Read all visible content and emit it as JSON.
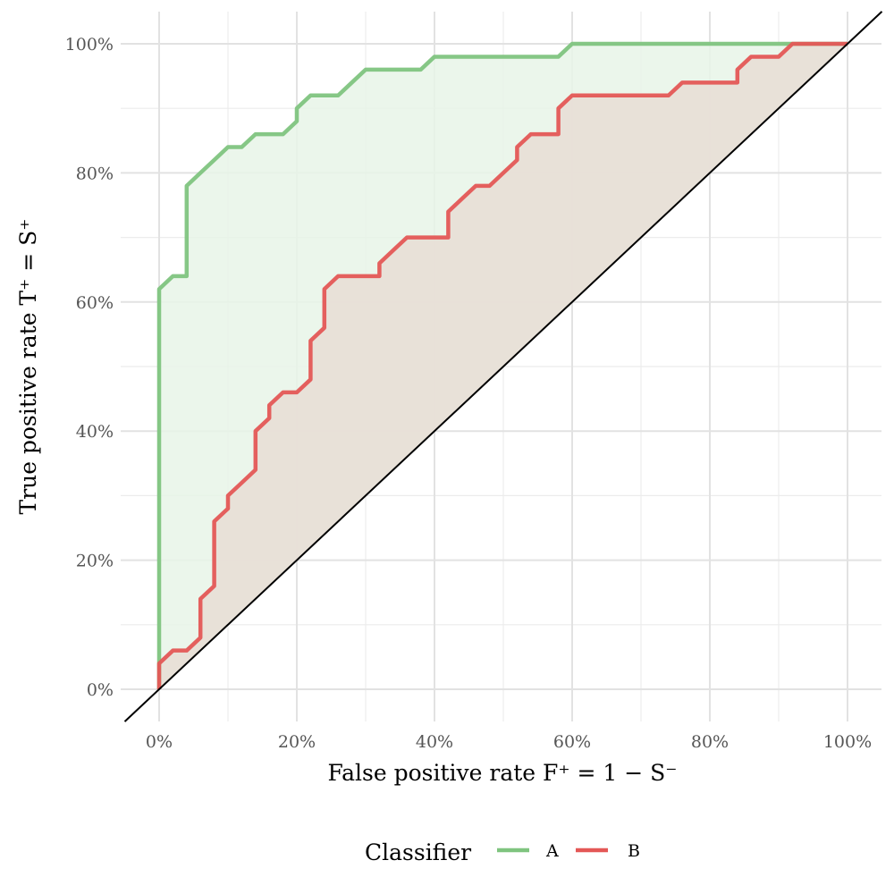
{
  "chart_data": {
    "type": "line",
    "xlabel": "False positive rate  F⁺ = 1 − S⁻",
    "ylabel": "True positive rate  T⁺ = S⁺",
    "xlim": [
      0,
      1
    ],
    "ylim": [
      0,
      1
    ],
    "x_ticks": [
      0,
      0.2,
      0.4,
      0.6,
      0.8,
      1.0
    ],
    "y_ticks": [
      0,
      0.2,
      0.4,
      0.6,
      0.8,
      1.0
    ],
    "x_tick_labels": [
      "0%",
      "20%",
      "40%",
      "60%",
      "80%",
      "100%"
    ],
    "y_tick_labels": [
      "0%",
      "20%",
      "40%",
      "60%",
      "80%",
      "100%"
    ],
    "grid": true,
    "diagonal_reference": true,
    "legend_title": "Classifier",
    "legend_position": "bottom",
    "series": [
      {
        "name": "A",
        "color": "#7fc47f",
        "fill": "#e8f4e8",
        "points": [
          [
            0,
            0
          ],
          [
            0,
            0.62
          ],
          [
            0.02,
            0.64
          ],
          [
            0.04,
            0.64
          ],
          [
            0.04,
            0.78
          ],
          [
            0.06,
            0.8
          ],
          [
            0.08,
            0.82
          ],
          [
            0.1,
            0.84
          ],
          [
            0.12,
            0.84
          ],
          [
            0.14,
            0.86
          ],
          [
            0.16,
            0.86
          ],
          [
            0.18,
            0.86
          ],
          [
            0.2,
            0.88
          ],
          [
            0.2,
            0.9
          ],
          [
            0.22,
            0.92
          ],
          [
            0.26,
            0.92
          ],
          [
            0.28,
            0.94
          ],
          [
            0.3,
            0.96
          ],
          [
            0.38,
            0.96
          ],
          [
            0.4,
            0.98
          ],
          [
            0.58,
            0.98
          ],
          [
            0.6,
            1.0
          ],
          [
            1.0,
            1.0
          ]
        ]
      },
      {
        "name": "B",
        "color": "#e45756",
        "fill": "#e8ddd5",
        "points": [
          [
            0,
            0
          ],
          [
            0,
            0.04
          ],
          [
            0.02,
            0.06
          ],
          [
            0.04,
            0.06
          ],
          [
            0.06,
            0.08
          ],
          [
            0.06,
            0.14
          ],
          [
            0.08,
            0.16
          ],
          [
            0.08,
            0.26
          ],
          [
            0.1,
            0.28
          ],
          [
            0.1,
            0.3
          ],
          [
            0.12,
            0.32
          ],
          [
            0.14,
            0.34
          ],
          [
            0.14,
            0.4
          ],
          [
            0.16,
            0.42
          ],
          [
            0.16,
            0.44
          ],
          [
            0.18,
            0.46
          ],
          [
            0.2,
            0.46
          ],
          [
            0.22,
            0.48
          ],
          [
            0.22,
            0.54
          ],
          [
            0.24,
            0.56
          ],
          [
            0.24,
            0.62
          ],
          [
            0.26,
            0.64
          ],
          [
            0.32,
            0.64
          ],
          [
            0.32,
            0.66
          ],
          [
            0.34,
            0.68
          ],
          [
            0.36,
            0.7
          ],
          [
            0.42,
            0.7
          ],
          [
            0.42,
            0.74
          ],
          [
            0.44,
            0.76
          ],
          [
            0.46,
            0.78
          ],
          [
            0.48,
            0.78
          ],
          [
            0.5,
            0.8
          ],
          [
            0.52,
            0.82
          ],
          [
            0.52,
            0.84
          ],
          [
            0.54,
            0.86
          ],
          [
            0.58,
            0.86
          ],
          [
            0.58,
            0.9
          ],
          [
            0.6,
            0.92
          ],
          [
            0.74,
            0.92
          ],
          [
            0.76,
            0.94
          ],
          [
            0.84,
            0.94
          ],
          [
            0.84,
            0.96
          ],
          [
            0.86,
            0.98
          ],
          [
            0.9,
            0.98
          ],
          [
            0.92,
            1.0
          ],
          [
            1.0,
            1.0
          ]
        ]
      }
    ]
  }
}
